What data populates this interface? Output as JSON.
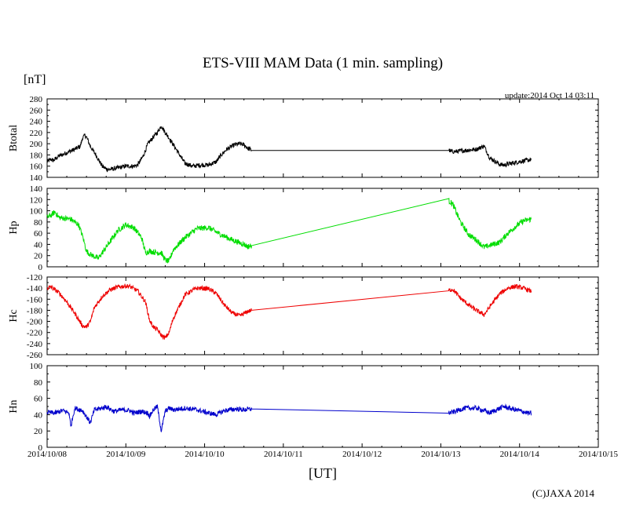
{
  "title": "ETS-VIII MAM Data (1 min. sampling)",
  "unit_label": "[nT]",
  "update_text": "update:2014 Oct 14 03:11",
  "x_axis_label": "[UT]",
  "credit": "(C)JAXA 2014",
  "x_ticks": [
    "2014/10/08",
    "2014/10/09",
    "2014/10/10",
    "2014/10/11",
    "2014/10/12",
    "2014/10/13",
    "2014/10/14",
    "2014/10/15"
  ],
  "chart_data": {
    "type": "line",
    "x_unit": "days since 2014/10/08 00:00 UT",
    "x_range": [
      0,
      7
    ],
    "panels": [
      {
        "name": "Btotal",
        "ylabel": "Btotal",
        "color": "#000000",
        "ylim": [
          140,
          280
        ],
        "yticks": [
          "280",
          "260",
          "240",
          "220",
          "200",
          "180",
          "160",
          "140"
        ],
        "x": [
          0.0,
          0.05,
          0.08,
          0.15,
          0.25,
          0.35,
          0.42,
          0.45,
          0.48,
          0.5,
          0.55,
          0.62,
          0.7,
          0.75,
          0.8,
          0.9,
          1.0,
          1.1,
          1.15,
          1.22,
          1.28,
          1.35,
          1.4,
          1.45,
          1.5,
          1.55,
          1.75,
          1.85,
          1.95,
          2.05,
          2.15,
          2.2,
          2.28,
          2.38,
          2.45,
          2.5,
          2.55,
          2.6,
          5.1,
          5.13,
          5.2,
          5.3,
          5.45,
          5.55,
          5.62,
          5.75,
          5.8,
          5.9,
          6.0,
          6.15
        ],
        "y": [
          168,
          172,
          170,
          178,
          184,
          190,
          195,
          210,
          215,
          212,
          195,
          180,
          160,
          155,
          154,
          157,
          160,
          160,
          162,
          178,
          200,
          212,
          220,
          232,
          220,
          210,
          165,
          160,
          162,
          162,
          168,
          178,
          190,
          198,
          200,
          198,
          192,
          188,
          189,
          186,
          186,
          188,
          190,
          196,
          175,
          163,
          162,
          165,
          168,
          172
        ],
        "noise": 4
      },
      {
        "name": "Hp",
        "ylabel": "Hp",
        "color": "#00dd00",
        "ylim": [
          0,
          140
        ],
        "yticks": [
          "140",
          "120",
          "100",
          "80",
          "60",
          "40",
          "20",
          "0"
        ],
        "x": [
          0.0,
          0.05,
          0.1,
          0.15,
          0.3,
          0.4,
          0.45,
          0.5,
          0.55,
          0.65,
          0.7,
          0.8,
          0.9,
          1.0,
          1.1,
          1.2,
          1.25,
          1.3,
          1.4,
          1.45,
          1.5,
          1.55,
          1.6,
          1.75,
          1.9,
          2.05,
          2.2,
          2.35,
          2.5,
          2.55,
          2.6,
          5.1,
          5.15,
          5.25,
          5.35,
          5.45,
          5.55,
          5.75,
          5.85,
          5.95,
          6.05,
          6.15
        ],
        "y": [
          88,
          92,
          98,
          88,
          85,
          75,
          55,
          28,
          22,
          15,
          25,
          45,
          65,
          75,
          70,
          52,
          25,
          28,
          25,
          25,
          12,
          10,
          30,
          52,
          68,
          70,
          58,
          48,
          40,
          36,
          38,
          118,
          112,
          80,
          58,
          48,
          35,
          44,
          60,
          72,
          82,
          85
        ],
        "noise": 5
      },
      {
        "name": "Hc",
        "ylabel": "Hc",
        "color": "#ee0000",
        "ylim": [
          -260,
          -120
        ],
        "yticks": [
          "-120",
          "-140",
          "-160",
          "-180",
          "-200",
          "-220",
          "-240",
          "-260"
        ],
        "x": [
          0.0,
          0.05,
          0.15,
          0.25,
          0.35,
          0.45,
          0.5,
          0.55,
          0.6,
          0.7,
          0.8,
          0.9,
          1.0,
          1.05,
          1.15,
          1.25,
          1.3,
          1.35,
          1.4,
          1.45,
          1.5,
          1.55,
          1.6,
          1.75,
          1.9,
          2.05,
          2.15,
          2.25,
          2.35,
          2.45,
          2.55,
          2.6,
          5.1,
          5.15,
          5.25,
          5.35,
          5.45,
          5.55,
          5.65,
          5.75,
          5.85,
          5.95,
          6.05,
          6.15
        ],
        "y": [
          -140,
          -138,
          -148,
          -165,
          -185,
          -208,
          -210,
          -200,
          -175,
          -155,
          -143,
          -138,
          -136,
          -137,
          -145,
          -165,
          -198,
          -210,
          -215,
          -225,
          -230,
          -220,
          -195,
          -152,
          -140,
          -141,
          -150,
          -170,
          -185,
          -190,
          -182,
          -180,
          -144,
          -142,
          -158,
          -170,
          -180,
          -188,
          -168,
          -150,
          -140,
          -137,
          -140,
          -146
        ],
        "noise": 4
      },
      {
        "name": "Hn",
        "ylabel": "Hn",
        "color": "#0000cc",
        "ylim": [
          0,
          100
        ],
        "yticks": [
          "100",
          "80",
          "60",
          "40",
          "20",
          "0"
        ],
        "x": [
          0.0,
          0.1,
          0.2,
          0.28,
          0.3,
          0.35,
          0.45,
          0.55,
          0.6,
          0.7,
          0.75,
          0.85,
          0.95,
          1.05,
          1.1,
          1.2,
          1.28,
          1.3,
          1.35,
          1.4,
          1.45,
          1.5,
          1.55,
          1.6,
          1.75,
          1.9,
          2.05,
          2.15,
          2.25,
          2.4,
          2.5,
          2.6,
          5.1,
          5.15,
          5.3,
          5.45,
          5.55,
          5.62,
          5.8,
          5.9,
          6.0,
          6.1,
          6.15
        ],
        "y": [
          43,
          42,
          45,
          42,
          25,
          48,
          45,
          30,
          46,
          48,
          50,
          44,
          46,
          45,
          42,
          44,
          42,
          38,
          46,
          50,
          20,
          44,
          48,
          46,
          48,
          46,
          42,
          40,
          45,
          47,
          46,
          47,
          42,
          43,
          48,
          48,
          45,
          42,
          50,
          47,
          45,
          42,
          41
        ],
        "noise": 3
      }
    ]
  }
}
